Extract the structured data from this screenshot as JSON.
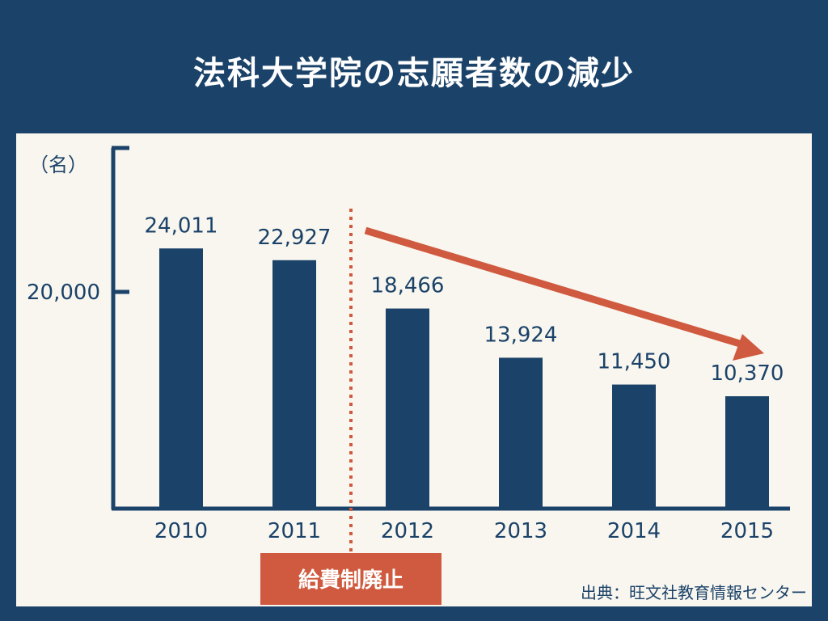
{
  "chart_data": {
    "type": "bar",
    "title": "法科大学院の志願者数の減少",
    "unit_label": "（名）",
    "categories": [
      "2010",
      "2011",
      "2012",
      "2013",
      "2014",
      "2015"
    ],
    "values": [
      24011,
      22927,
      18466,
      13924,
      11450,
      10370
    ],
    "value_labels": [
      "24,011",
      "22,927",
      "18,466",
      "13,924",
      "11,450",
      "10,370"
    ],
    "y_ticks": [
      {
        "value": 20000,
        "label": "20,000"
      }
    ],
    "annotation": "給費制廃止",
    "source": "出典：旺文社教育情報センター",
    "colors": {
      "bar": "#1b4268",
      "accent": "#cf5a3f",
      "panel": "#f8f6ef",
      "background": "#1b4268"
    }
  }
}
